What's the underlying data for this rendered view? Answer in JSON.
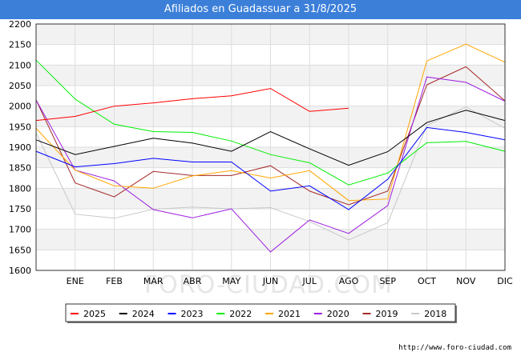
{
  "header": {
    "title": "Afiliados en Guadassuar a 31/8/2025"
  },
  "footer": {
    "url": "http://www.foro-ciudad.com"
  },
  "watermark": "FORO-CIUDAD.COM",
  "chart_data": {
    "type": "line",
    "title": "Afiliados en Guadassuar a 31/8/2025",
    "xlabel": "",
    "ylabel": "",
    "categories": [
      "",
      "ENE",
      "FEB",
      "MAR",
      "ABR",
      "MAY",
      "JUN",
      "JUL",
      "AGO",
      "SEP",
      "OCT",
      "NOV",
      "DIC"
    ],
    "ylim": [
      1600,
      2200
    ],
    "yticks": [
      1600,
      1650,
      1700,
      1750,
      1800,
      1850,
      1900,
      1950,
      2000,
      2050,
      2100,
      2150,
      2200
    ],
    "grid": true,
    "legend_position": "bottom",
    "series": [
      {
        "name": "2025",
        "color": "#ff0000",
        "values": [
          1965,
          1975,
          2000,
          2008,
          2018,
          2025,
          2043,
          1987,
          1995,
          null,
          null,
          null,
          null
        ]
      },
      {
        "name": "2024",
        "color": "#000000",
        "values": [
          1918,
          1882,
          1902,
          1922,
          1910,
          1890,
          1938,
          1896,
          1856,
          1889,
          1960,
          1990,
          1965
        ]
      },
      {
        "name": "2023",
        "color": "#0000ff",
        "values": [
          1890,
          1852,
          1860,
          1873,
          1864,
          1864,
          1793,
          1806,
          1748,
          1822,
          1948,
          1936,
          1918
        ]
      },
      {
        "name": "2022",
        "color": "#00ee00",
        "values": [
          2112,
          2017,
          1956,
          1938,
          1936,
          1915,
          1882,
          1862,
          1808,
          1837,
          1911,
          1914,
          1890
        ]
      },
      {
        "name": "2021",
        "color": "#ffa500",
        "values": [
          1946,
          1844,
          1806,
          1800,
          1830,
          1843,
          1825,
          1843,
          1770,
          1774,
          2110,
          2151,
          2107
        ]
      },
      {
        "name": "2020",
        "color": "#9d1fe0",
        "values": [
          2015,
          1844,
          1818,
          1748,
          1728,
          1750,
          1645,
          1723,
          1690,
          1758,
          2071,
          2058,
          2012
        ]
      },
      {
        "name": "2019",
        "color": "#a52a2a",
        "values": [
          2015,
          1813,
          1779,
          1841,
          1831,
          1831,
          1855,
          1793,
          1760,
          1793,
          2052,
          2096,
          2013
        ]
      },
      {
        "name": "2018",
        "color": "#c8c8c8",
        "values": [
          1935,
          1737,
          1727,
          1749,
          1754,
          1750,
          1753,
          1719,
          1674,
          1716,
          1953,
          1998,
          1946
        ]
      }
    ]
  }
}
